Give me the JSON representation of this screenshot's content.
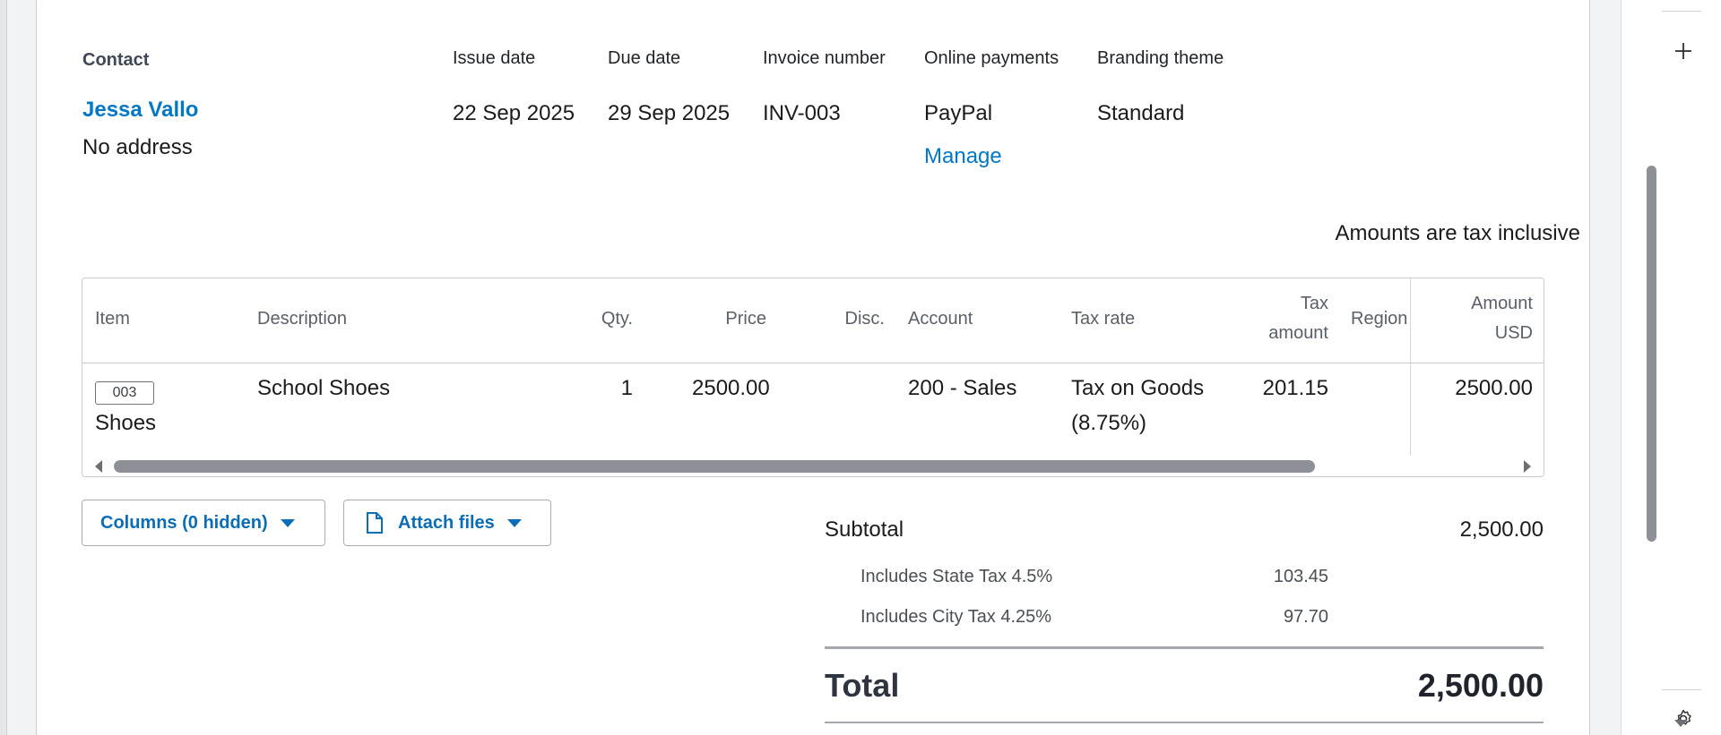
{
  "invoice": {
    "contact_label": "Contact",
    "contact_name": "Jessa Vallo",
    "contact_address": "No address",
    "issue_date_label": "Issue date",
    "issue_date": "22 Sep 2025",
    "due_date_label": "Due date",
    "due_date": "29 Sep 2025",
    "invoice_number_label": "Invoice number",
    "invoice_number": "INV-003",
    "online_payments_label": "Online payments",
    "online_payments": "PayPal",
    "manage_link": "Manage",
    "branding_theme_label": "Branding theme",
    "branding_theme": "Standard",
    "tax_mode": "Amounts are tax inclusive"
  },
  "table": {
    "headers": {
      "item": "Item",
      "description": "Description",
      "qty": "Qty.",
      "price": "Price",
      "disc": "Disc.",
      "account": "Account",
      "tax_rate": "Tax rate",
      "tax_amount_1": "Tax",
      "tax_amount_2": "amount",
      "region": "Region",
      "amount_1": "Amount",
      "amount_2": "USD"
    },
    "rows": [
      {
        "item_code": "003",
        "item_name": "Shoes",
        "description": "School Shoes",
        "qty": "1",
        "price": "2500.00",
        "disc": "",
        "account": "200 - Sales",
        "tax_rate_1": "Tax on Goods",
        "tax_rate_2": "(8.75%)",
        "tax_amount": "201.15",
        "region": "",
        "amount": "2500.00"
      }
    ]
  },
  "actions": {
    "columns_button": "Columns (0 hidden)",
    "attach_button": "Attach files"
  },
  "summary": {
    "subtotal_label": "Subtotal",
    "subtotal": "2,500.00",
    "state_tax_label": "Includes State Tax 4.5%",
    "state_tax": "103.45",
    "city_tax_label": "Includes City Tax 4.25%",
    "city_tax": "97.70",
    "total_label": "Total",
    "total": "2,500.00"
  },
  "sidebar_tools": {
    "add_icon": "plus-icon",
    "settings_icon": "gear-icon"
  },
  "colors": {
    "link": "#0078c8",
    "button_text": "#0b6db5"
  }
}
